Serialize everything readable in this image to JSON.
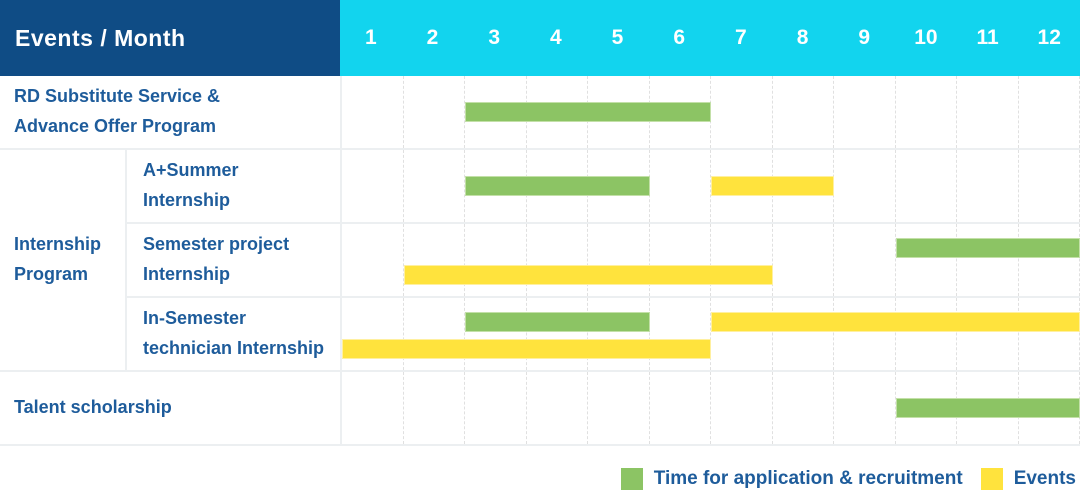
{
  "header": {
    "title": "Events / Month",
    "months": [
      "1",
      "2",
      "3",
      "4",
      "5",
      "6",
      "7",
      "8",
      "9",
      "10",
      "11",
      "12"
    ]
  },
  "group": {
    "label": "Internship\nProgram"
  },
  "rows": [
    {
      "label": "RD Substitute Service &\nAdvance Offer Program",
      "bars": [
        {
          "color": "green",
          "start_month": 3,
          "end_month": 6,
          "lane": "single"
        }
      ]
    },
    {
      "label": "A+Summer\nInternship",
      "bars": [
        {
          "color": "green",
          "start_month": 3,
          "end_month": 5,
          "lane": "single"
        },
        {
          "color": "yellow",
          "start_month": 7,
          "end_month": 8,
          "lane": "single"
        }
      ]
    },
    {
      "label": "Semester project\nInternship",
      "bars": [
        {
          "color": "green",
          "start_month": 10,
          "end_month": 12,
          "lane": "top"
        },
        {
          "color": "yellow",
          "start_month": 2,
          "end_month": 7,
          "lane": "bottom"
        }
      ]
    },
    {
      "label": "In-Semester\ntechnician Internship",
      "bars": [
        {
          "color": "green",
          "start_month": 3,
          "end_month": 5,
          "lane": "top"
        },
        {
          "color": "yellow",
          "start_month": 7,
          "end_month": 12,
          "lane": "top"
        },
        {
          "color": "yellow",
          "start_month": 1,
          "end_month": 6,
          "lane": "bottom"
        }
      ]
    },
    {
      "label": "Talent scholarship",
      "bars": [
        {
          "color": "green",
          "start_month": 10,
          "end_month": 12,
          "lane": "single"
        }
      ]
    }
  ],
  "legend": {
    "items": [
      {
        "label": "Time for application & recruitment",
        "color": "#8cc464"
      },
      {
        "label": "Events",
        "color": "#ffe33d"
      }
    ]
  },
  "colors": {
    "header_navy": "#0f4c85",
    "header_cyan": "#12d4ee",
    "application_green": "#8cc464",
    "events_yellow": "#ffe33d",
    "label_blue": "#1e5c9b"
  },
  "chart_data": {
    "type": "bar",
    "subtype": "gantt-month-ranges",
    "title": "Events / Month",
    "x_ticks": [
      1,
      2,
      3,
      4,
      5,
      6,
      7,
      8,
      9,
      10,
      11,
      12
    ],
    "xlim": [
      1,
      12
    ],
    "grid": true,
    "legend_position": "bottom-right",
    "series_legend": [
      {
        "name": "Time for application & recruitment",
        "color": "#8cc464"
      },
      {
        "name": "Events",
        "color": "#ffe33d"
      }
    ],
    "rows": [
      {
        "group": null,
        "label": "RD Substitute Service & Advance Offer Program",
        "ranges": [
          {
            "series": "Time for application & recruitment",
            "months": [
              3,
              6
            ]
          }
        ]
      },
      {
        "group": "Internship Program",
        "label": "A+Summer Internship",
        "ranges": [
          {
            "series": "Time for application & recruitment",
            "months": [
              3,
              5
            ]
          },
          {
            "series": "Events",
            "months": [
              7,
              8
            ]
          }
        ]
      },
      {
        "group": "Internship Program",
        "label": "Semester project Internship",
        "ranges": [
          {
            "series": "Time for application & recruitment",
            "months": [
              10,
              12
            ]
          },
          {
            "series": "Events",
            "months": [
              2,
              7
            ]
          }
        ]
      },
      {
        "group": "Internship Program",
        "label": "In-Semester technician Internship",
        "ranges": [
          {
            "series": "Time for application & recruitment",
            "months": [
              3,
              5
            ]
          },
          {
            "series": "Events",
            "months": [
              7,
              12
            ]
          },
          {
            "series": "Events",
            "months": [
              1,
              6
            ]
          }
        ]
      },
      {
        "group": null,
        "label": "Talent scholarship",
        "ranges": [
          {
            "series": "Time for application & recruitment",
            "months": [
              10,
              12
            ]
          }
        ]
      }
    ]
  }
}
